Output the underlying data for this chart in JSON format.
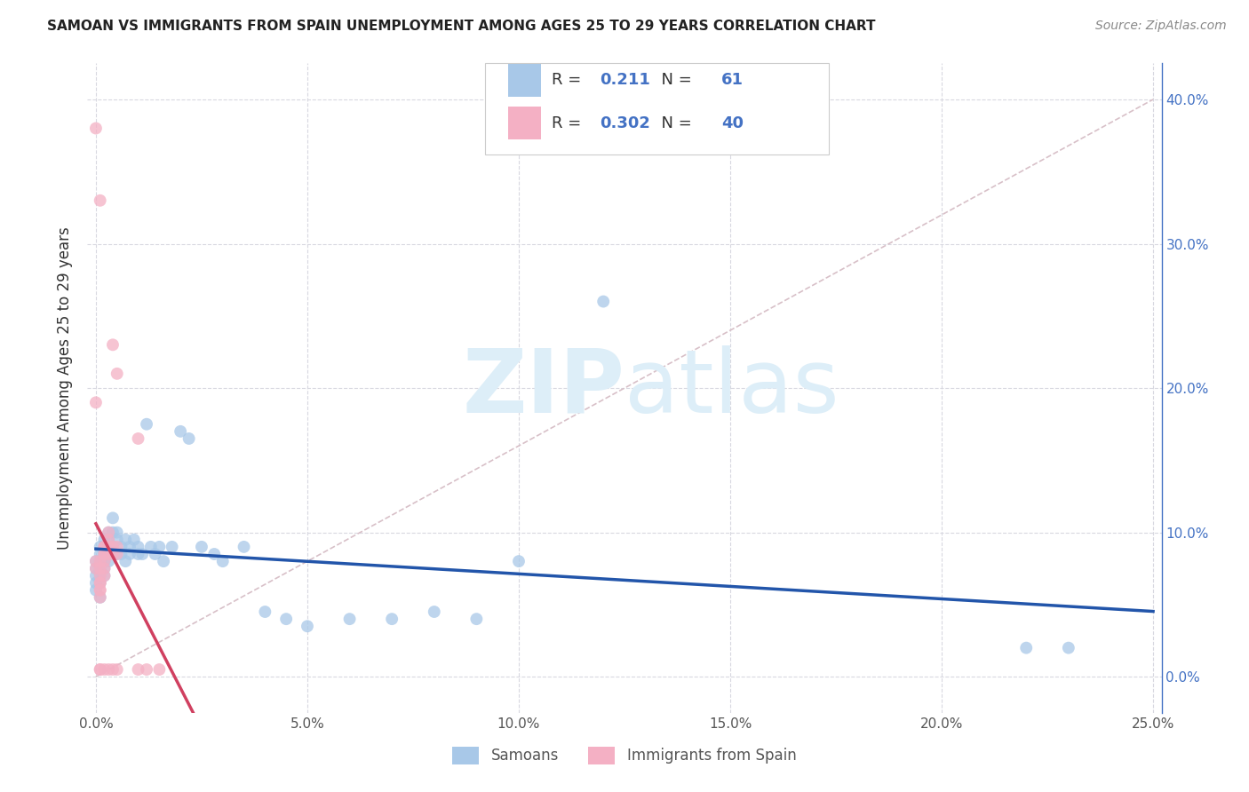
{
  "title": "SAMOAN VS IMMIGRANTS FROM SPAIN UNEMPLOYMENT AMONG AGES 25 TO 29 YEARS CORRELATION CHART",
  "source": "Source: ZipAtlas.com",
  "ylabel": "Unemployment Among Ages 25 to 29 years",
  "xlim": [
    -0.002,
    0.252
  ],
  "ylim": [
    -0.025,
    0.425
  ],
  "xtick_vals": [
    0.0,
    0.05,
    0.1,
    0.15,
    0.2,
    0.25
  ],
  "xtick_labels": [
    "0.0%",
    "5.0%",
    "10.0%",
    "15.0%",
    "20.0%",
    "25.0%"
  ],
  "ytick_vals": [
    0.0,
    0.1,
    0.2,
    0.3,
    0.4
  ],
  "ytick_labels": [
    "0.0%",
    "10.0%",
    "20.0%",
    "30.0%",
    "40.0%"
  ],
  "legend_labels": [
    "Samoans",
    "Immigrants from Spain"
  ],
  "legend_R": [
    "0.211",
    "0.302"
  ],
  "legend_N": [
    "61",
    "40"
  ],
  "samoan_color": "#a8c8e8",
  "spain_color": "#f4b0c4",
  "samoan_line_color": "#2255aa",
  "spain_line_color": "#d04060",
  "diagonal_color": "#d8c0c8",
  "watermark_color": "#ddeef8",
  "grid_color": "#d8d8e0",
  "title_color": "#222222",
  "source_color": "#888888",
  "right_tick_color": "#4472c4",
  "samoan_x": [
    0.0,
    0.0,
    0.0,
    0.0,
    0.0,
    0.001,
    0.001,
    0.001,
    0.001,
    0.001,
    0.001,
    0.001,
    0.002,
    0.002,
    0.002,
    0.002,
    0.002,
    0.002,
    0.003,
    0.003,
    0.003,
    0.003,
    0.004,
    0.004,
    0.004,
    0.005,
    0.005,
    0.005,
    0.006,
    0.006,
    0.007,
    0.007,
    0.008,
    0.008,
    0.009,
    0.01,
    0.01,
    0.011,
    0.012,
    0.013,
    0.014,
    0.015,
    0.016,
    0.018,
    0.02,
    0.022,
    0.025,
    0.028,
    0.03,
    0.035,
    0.04,
    0.045,
    0.05,
    0.06,
    0.07,
    0.08,
    0.09,
    0.1,
    0.12,
    0.22,
    0.23
  ],
  "samoan_y": [
    0.075,
    0.08,
    0.065,
    0.07,
    0.06,
    0.08,
    0.075,
    0.07,
    0.09,
    0.065,
    0.055,
    0.085,
    0.09,
    0.08,
    0.095,
    0.075,
    0.07,
    0.085,
    0.095,
    0.1,
    0.08,
    0.09,
    0.1,
    0.09,
    0.11,
    0.095,
    0.085,
    0.1,
    0.085,
    0.09,
    0.08,
    0.095,
    0.085,
    0.09,
    0.095,
    0.09,
    0.085,
    0.085,
    0.175,
    0.09,
    0.085,
    0.09,
    0.08,
    0.09,
    0.17,
    0.165,
    0.09,
    0.085,
    0.08,
    0.09,
    0.045,
    0.04,
    0.035,
    0.04,
    0.04,
    0.045,
    0.04,
    0.08,
    0.26,
    0.02,
    0.02
  ],
  "spain_x": [
    0.0,
    0.0,
    0.0,
    0.001,
    0.001,
    0.001,
    0.001,
    0.001,
    0.001,
    0.001,
    0.001,
    0.001,
    0.001,
    0.002,
    0.002,
    0.002,
    0.002,
    0.002,
    0.002,
    0.002,
    0.002,
    0.003,
    0.003,
    0.003,
    0.003,
    0.003,
    0.004,
    0.004,
    0.004,
    0.004,
    0.005,
    0.005,
    0.005,
    0.005,
    0.01,
    0.01,
    0.012,
    0.015,
    0.0,
    0.001
  ],
  "spain_y": [
    0.075,
    0.08,
    0.38,
    0.065,
    0.07,
    0.06,
    0.075,
    0.33,
    0.08,
    0.065,
    0.06,
    0.055,
    0.005,
    0.09,
    0.08,
    0.075,
    0.07,
    0.085,
    0.09,
    0.085,
    0.005,
    0.095,
    0.09,
    0.085,
    0.1,
    0.005,
    0.23,
    0.09,
    0.085,
    0.005,
    0.085,
    0.09,
    0.21,
    0.005,
    0.165,
    0.005,
    0.005,
    0.005,
    0.19,
    0.005
  ]
}
